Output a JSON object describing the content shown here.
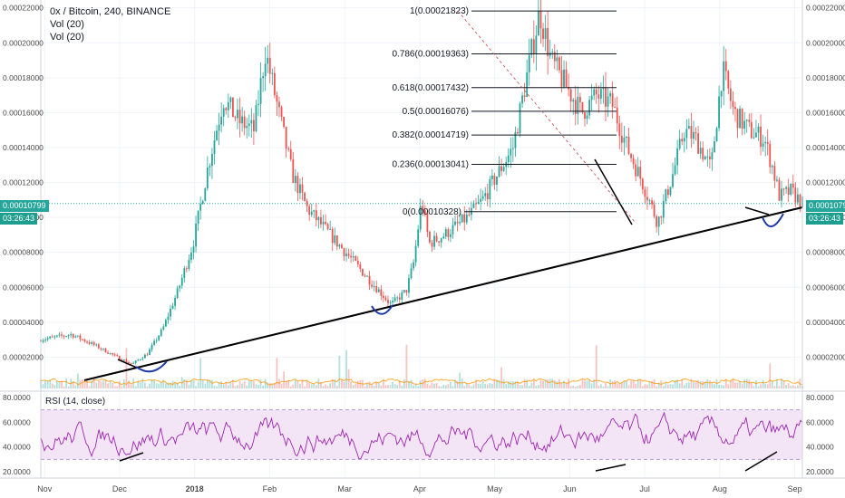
{
  "header": {
    "title": "0x / Bitcoin, 240, BINANCE",
    "indicator_1": "Vol (20)",
    "indicator_2": "Vol (20)"
  },
  "price_tags": {
    "current_left": "0.00010799",
    "timer_left": "03:26:43",
    "current_right": "0.00010799",
    "timer_right": "03:26:43"
  },
  "rsi_label": "RSI (14, close)",
  "colors": {
    "up": "#26a69a",
    "down": "#ef5350",
    "rsi_line": "#9c27b0",
    "rsi_band": "#f3e5f5",
    "volume_ma": "#ff9800",
    "trendline": "#000000",
    "arc": "#1e3aa8",
    "price_line": "#26a69a"
  },
  "chart_data": [
    {
      "type": "candlestick",
      "title": "0x / Bitcoin, 240, BINANCE",
      "y_ticks": [
        "0.00002000",
        "0.00004000",
        "0.00006000",
        "0.00008000",
        "0.00010000",
        "0.00012000",
        "0.00014000",
        "0.00016000",
        "0.00018000",
        "0.00020000",
        "0.00022000"
      ],
      "ylim": [
        5e-07,
        0.0002245
      ],
      "x_ticks": [
        "Nov",
        "Dec",
        "2018",
        "Feb",
        "Mar",
        "Apr",
        "May",
        "Jun",
        "Jul",
        "Aug",
        "Sep"
      ],
      "current_price": 0.00010799,
      "price_path": [
        [
          0.0,
          3e-05
        ],
        [
          0.04,
          3.3e-05
        ],
        [
          0.07,
          2.7e-05
        ],
        [
          0.1,
          2e-05
        ],
        [
          0.12,
          1.6e-05
        ],
        [
          0.14,
          2.2e-05
        ],
        [
          0.16,
          3.6e-05
        ],
        [
          0.18,
          5.8e-05
        ],
        [
          0.2,
          8.5e-05
        ],
        [
          0.22,
          0.00013
        ],
        [
          0.24,
          0.000168
        ],
        [
          0.26,
          0.000155
        ],
        [
          0.28,
          0.00015
        ],
        [
          0.295,
          0.000195
        ],
        [
          0.31,
          0.000165
        ],
        [
          0.33,
          0.000125
        ],
        [
          0.35,
          0.000105
        ],
        [
          0.38,
          9e-05
        ],
        [
          0.41,
          7.5e-05
        ],
        [
          0.44,
          6e-05
        ],
        [
          0.46,
          5e-05
        ],
        [
          0.48,
          5.8e-05
        ],
        [
          0.49,
          7.5e-05
        ],
        [
          0.5,
          0.00011
        ],
        [
          0.51,
          8.5e-05
        ],
        [
          0.53,
          9e-05
        ],
        [
          0.56,
          0.0001
        ],
        [
          0.58,
          0.00011
        ],
        [
          0.6,
          0.000125
        ],
        [
          0.62,
          0.00014
        ],
        [
          0.64,
          0.000185
        ],
        [
          0.655,
          0.000218
        ],
        [
          0.67,
          0.00019
        ],
        [
          0.69,
          0.000175
        ],
        [
          0.71,
          0.00016
        ],
        [
          0.73,
          0.00017
        ],
        [
          0.75,
          0.000165
        ],
        [
          0.77,
          0.00014
        ],
        [
          0.79,
          0.00012
        ],
        [
          0.81,
          9.7e-05
        ],
        [
          0.83,
          0.000125
        ],
        [
          0.845,
          0.00015
        ],
        [
          0.86,
          0.000145
        ],
        [
          0.88,
          0.000128
        ],
        [
          0.895,
          0.000185
        ],
        [
          0.91,
          0.00016
        ],
        [
          0.93,
          0.00015
        ],
        [
          0.95,
          0.000145
        ],
        [
          0.96,
          0.00013
        ],
        [
          0.97,
          0.000112
        ],
        [
          0.985,
          0.000115
        ],
        [
          1.0,
          0.000108
        ]
      ],
      "fibonacci": [
        {
          "label": "1(0.00021823)",
          "value": 0.00021823
        },
        {
          "label": "0.786(0.00019363)",
          "value": 0.00019363
        },
        {
          "label": "0.618(0.00017432)",
          "value": 0.00017432
        },
        {
          "label": "0.5(0.00016076)",
          "value": 0.00016076
        },
        {
          "label": "0.382(0.00014719)",
          "value": 0.00014719
        },
        {
          "label": "0.236(0.00013041)",
          "value": 0.00013041
        },
        {
          "label": "0(0.00010328)",
          "value": 0.00010328
        }
      ]
    },
    {
      "type": "line",
      "title": "RSI (14, close)",
      "y_ticks": [
        "20.0000",
        "40.0000",
        "60.0000",
        "80.0000"
      ],
      "ylim": [
        15,
        85
      ],
      "band": [
        30,
        70
      ],
      "series": [
        {
          "name": "RSI (14, close)",
          "x_range": [
            0,
            1
          ],
          "values_mean": 48
        }
      ]
    }
  ]
}
